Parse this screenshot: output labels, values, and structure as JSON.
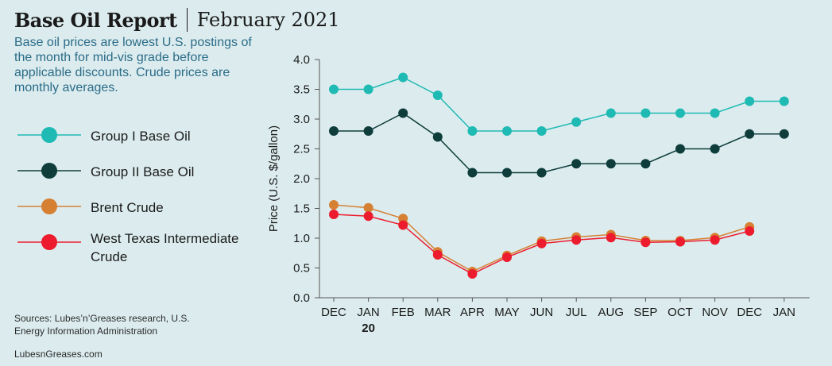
{
  "header": {
    "title": "Base Oil Report",
    "date": "February 2021",
    "subtitle": "Base oil prices are lowest U.S. postings of the month for mid-vis grade before applicable discounts. Crude prices are monthly averages."
  },
  "legend": [
    {
      "label": "Group I Base Oil",
      "color": "#1fbab4"
    },
    {
      "label": "Group II Base Oil",
      "color": "#0e3d3c"
    },
    {
      "label": "Brent Crude",
      "color": "#d68033"
    },
    {
      "label": "West Texas Intermediate Crude",
      "color": "#ec1c2e"
    }
  ],
  "footer": {
    "sources": "Sources: Lubes’n’Greases research, U.S. Energy Information Administration",
    "site": "LubesnGreases.com"
  },
  "chart_data": {
    "type": "line",
    "categories": [
      "DEC",
      "JAN",
      "FEB",
      "MAR",
      "APR",
      "MAY",
      "JUN",
      "JUL",
      "AUG",
      "SEP",
      "OCT",
      "NOV",
      "DEC",
      "JAN"
    ],
    "year_label": "20",
    "ylabel": "Price (U.S. $/gallon)",
    "ylim": [
      0,
      4.0
    ],
    "yticks": [
      "0.0",
      "0.5",
      "1.0",
      "1.5",
      "2.0",
      "2.5",
      "3.0",
      "3.5",
      "4.0"
    ],
    "grid": false,
    "series": [
      {
        "name": "Group I Base Oil",
        "color": "#1fbab4",
        "values": [
          3.5,
          3.5,
          3.7,
          3.4,
          2.8,
          2.8,
          2.8,
          2.95,
          3.1,
          3.1,
          3.1,
          3.1,
          3.3,
          3.3
        ]
      },
      {
        "name": "Group II Base Oil",
        "color": "#0e3d3c",
        "values": [
          2.8,
          2.8,
          3.1,
          2.7,
          2.1,
          2.1,
          2.1,
          2.25,
          2.25,
          2.25,
          2.5,
          2.5,
          2.75,
          2.75
        ]
      },
      {
        "name": "Brent Crude",
        "color": "#d68033",
        "values": [
          1.56,
          1.51,
          1.33,
          0.77,
          0.44,
          0.71,
          0.95,
          1.02,
          1.06,
          0.96,
          0.96,
          1.01,
          1.19,
          null
        ]
      },
      {
        "name": "West Texas Intermediate Crude",
        "color": "#ec1c2e",
        "values": [
          1.4,
          1.37,
          1.22,
          0.72,
          0.4,
          0.68,
          0.91,
          0.97,
          1.01,
          0.93,
          0.94,
          0.97,
          1.12,
          null
        ]
      }
    ]
  }
}
